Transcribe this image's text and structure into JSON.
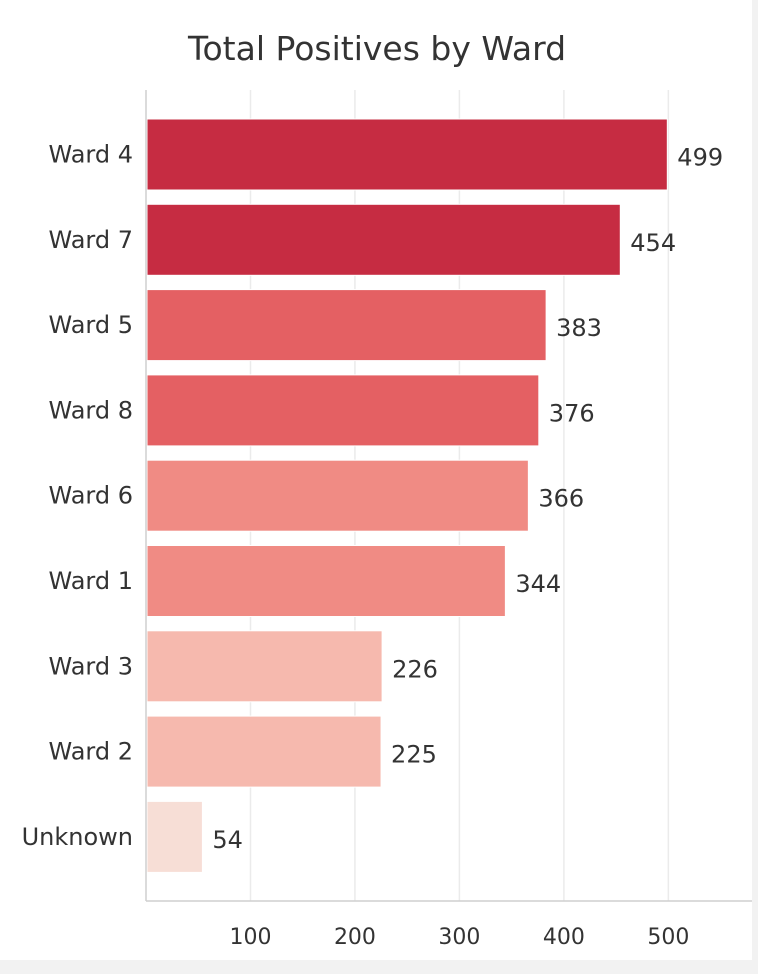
{
  "chart_data": {
    "type": "bar",
    "orientation": "horizontal",
    "title": "Total Positives by Ward",
    "xlabel": "",
    "ylabel": "",
    "categories": [
      "Ward 4",
      "Ward 7",
      "Ward 5",
      "Ward 8",
      "Ward 6",
      "Ward 1",
      "Ward 3",
      "Ward 2",
      "Unknown"
    ],
    "values": [
      499,
      454,
      383,
      376,
      366,
      344,
      226,
      225,
      54
    ],
    "bar_colors": [
      "#c62c42",
      "#c62c42",
      "#e46063",
      "#e46063",
      "#f08b84",
      "#f08b84",
      "#f6b9ae",
      "#f6b9ae",
      "#f7ded6"
    ],
    "xlim": [
      0,
      550
    ],
    "xticks": [
      100,
      200,
      300,
      400,
      500
    ],
    "grid": true,
    "legend": "none"
  }
}
